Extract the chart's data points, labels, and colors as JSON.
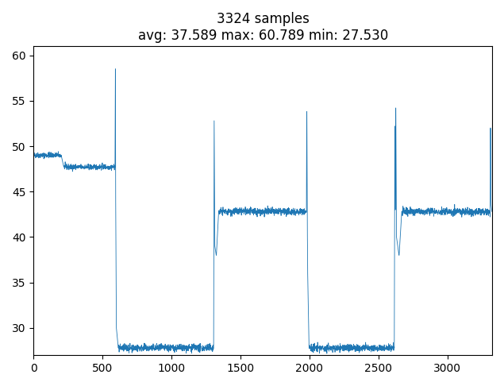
{
  "title_line1": "3324 samples",
  "title_line2": "avg: 37.589 max: 60.789 min: 27.530",
  "line_color": "#1f77b4",
  "linewidth": 0.6,
  "xlim": [
    0,
    3324
  ],
  "ylim": [
    27,
    61
  ],
  "yticks": [
    30,
    35,
    40,
    45,
    50,
    55,
    60
  ],
  "xticks": [
    0,
    500,
    1000,
    1500,
    2000,
    2500,
    3000
  ],
  "bg_color": "#ffffff",
  "n_samples": 3324,
  "figwidth": 6.35,
  "figheight": 4.86,
  "dpi": 100
}
